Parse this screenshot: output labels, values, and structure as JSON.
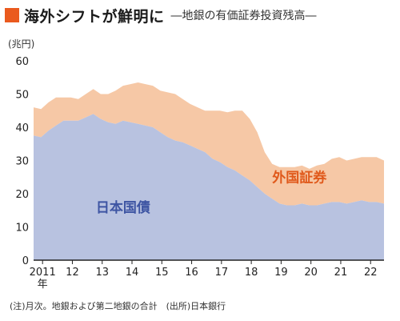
{
  "title": "海外シフトが鮮明に",
  "subtitle": "―地銀の有価証券投資残高―",
  "note": "(注)月次。地銀および第二地銀の合計　(出所)日本銀行",
  "colors": {
    "title_marker": "#ea5a1e",
    "domestic_fill": "#b8c2e0",
    "foreign_fill": "#f6c8a6",
    "domestic_label": "#3e55a3",
    "foreign_label": "#e0591b",
    "axis": "#222222"
  },
  "chart_data": {
    "type": "area",
    "stacked": true,
    "unit_label": "(兆円)",
    "ylim": [
      0,
      60
    ],
    "yticks": [
      "0",
      "10",
      "20",
      "30",
      "40",
      "50",
      "60"
    ],
    "xlim": [
      2011.0,
      2022.75
    ],
    "xticks": [
      {
        "value": 2011.3,
        "label": "2011"
      },
      {
        "value": 2012.3,
        "label": "12"
      },
      {
        "value": 2013.3,
        "label": "13"
      },
      {
        "value": 2014.3,
        "label": "14"
      },
      {
        "value": 2015.3,
        "label": "15"
      },
      {
        "value": 2016.3,
        "label": "16"
      },
      {
        "value": 2017.3,
        "label": "17"
      },
      {
        "value": 2018.3,
        "label": "18"
      },
      {
        "value": 2019.3,
        "label": "19"
      },
      {
        "value": 2020.3,
        "label": "20"
      },
      {
        "value": 2021.3,
        "label": "21"
      },
      {
        "value": 2022.3,
        "label": "22"
      }
    ],
    "x_year_suffix": "年",
    "grid": false,
    "x": [
      2011.0,
      2011.25,
      2011.5,
      2011.75,
      2012.0,
      2012.25,
      2012.5,
      2012.75,
      2013.0,
      2013.25,
      2013.5,
      2013.75,
      2014.0,
      2014.25,
      2014.5,
      2014.75,
      2015.0,
      2015.25,
      2015.5,
      2015.75,
      2016.0,
      2016.25,
      2016.5,
      2016.75,
      2017.0,
      2017.25,
      2017.5,
      2017.75,
      2018.0,
      2018.25,
      2018.5,
      2018.75,
      2019.0,
      2019.25,
      2019.5,
      2019.75,
      2020.0,
      2020.25,
      2020.5,
      2020.75,
      2021.0,
      2021.25,
      2021.5,
      2021.75,
      2022.0,
      2022.25,
      2022.5,
      2022.75
    ],
    "series": [
      {
        "name": "日本国債",
        "label_at": {
          "x": 2014.0,
          "y": 14.5
        },
        "values": [
          37.5,
          37.0,
          39.0,
          40.5,
          42.0,
          42.0,
          42.0,
          43.0,
          44.0,
          42.5,
          41.5,
          41.0,
          42.0,
          41.5,
          41.0,
          40.5,
          40.0,
          38.5,
          37.0,
          36.0,
          35.5,
          34.5,
          33.5,
          32.5,
          30.5,
          29.5,
          28.0,
          27.0,
          25.5,
          24.0,
          22.0,
          20.0,
          18.5,
          17.0,
          16.5,
          16.5,
          17.0,
          16.5,
          16.5,
          17.0,
          17.5,
          17.5,
          17.0,
          17.5,
          18.0,
          17.5,
          17.5,
          17.0
        ]
      },
      {
        "name": "外国証券",
        "label_at": {
          "x": 2019.0,
          "y": 23.5
        },
        "values": [
          8.5,
          8.5,
          8.5,
          8.5,
          7.0,
          7.0,
          6.5,
          7.0,
          7.5,
          7.5,
          8.5,
          10.0,
          10.5,
          11.5,
          12.5,
          12.5,
          12.5,
          12.5,
          13.5,
          14.0,
          13.0,
          12.5,
          12.5,
          12.5,
          14.5,
          15.5,
          16.5,
          18.0,
          19.5,
          18.5,
          16.5,
          12.5,
          10.5,
          11.0,
          11.5,
          11.5,
          11.5,
          11.0,
          12.0,
          12.0,
          13.0,
          13.5,
          13.0,
          13.0,
          13.0,
          13.5,
          13.5,
          13.0
        ]
      }
    ]
  }
}
